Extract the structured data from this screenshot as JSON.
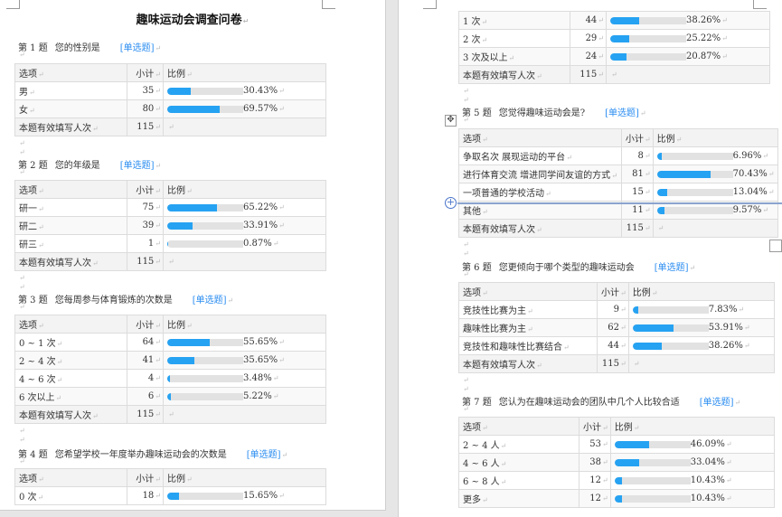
{
  "document": {
    "title": "趣味运动会调查问卷",
    "headers": {
      "option": "选项",
      "count": "小计",
      "ratio": "比例"
    },
    "total_label": "本题有效填写人次",
    "tag": "[单选题]",
    "colors": {
      "bar_fill": "#26a2f2",
      "bar_track": "#e2e2e2",
      "tag": "#2a8cf0"
    }
  },
  "questions": [
    {
      "no": "第 1 题",
      "text": "您的性别是",
      "total": "115",
      "rows": [
        {
          "label": "男",
          "count": "35",
          "pct": "30.43%"
        },
        {
          "label": "女",
          "count": "80",
          "pct": "69.57%"
        }
      ]
    },
    {
      "no": "第 2 题",
      "text": "您的年级是",
      "total": "115",
      "rows": [
        {
          "label": "研一",
          "count": "75",
          "pct": "65.22%"
        },
        {
          "label": "研二",
          "count": "39",
          "pct": "33.91%"
        },
        {
          "label": "研三",
          "count": "1",
          "pct": "0.87%"
        }
      ]
    },
    {
      "no": "第 3 题",
      "text": "您每周参与体育锻炼的次数是",
      "total": "115",
      "rows": [
        {
          "label": "0 ~ 1 次",
          "count": "64",
          "pct": "55.65%"
        },
        {
          "label": "2 ~ 4 次",
          "count": "41",
          "pct": "35.65%"
        },
        {
          "label": "4 ~ 6 次",
          "count": "4",
          "pct": "3.48%"
        },
        {
          "label": "6 次以上",
          "count": "6",
          "pct": "5.22%"
        }
      ]
    },
    {
      "no": "第 4 题",
      "text": "您希望学校一年度举办趣味运动会的次数是",
      "total": "115",
      "rows": [
        {
          "label": "0 次",
          "count": "18",
          "pct": "15.65%"
        },
        {
          "label": "1 次",
          "count": "44",
          "pct": "38.26%"
        },
        {
          "label": "2 次",
          "count": "29",
          "pct": "25.22%"
        },
        {
          "label": "3 次及以上",
          "count": "24",
          "pct": "20.87%"
        }
      ]
    },
    {
      "no": "第 5 题",
      "text": "您觉得趣味运动会是?",
      "total": "115",
      "rows": [
        {
          "label": "争取名次 展现运动的平台",
          "count": "8",
          "pct": "6.96%"
        },
        {
          "label": "进行体育交流 增进同学间友谊的方式",
          "count": "81",
          "pct": "70.43%"
        },
        {
          "label": "一项普通的学校活动",
          "count": "15",
          "pct": "13.04%"
        },
        {
          "label": "其他",
          "count": "11",
          "pct": "9.57%"
        }
      ]
    },
    {
      "no": "第 6 题",
      "text": "您更倾向于哪个类型的趣味运动会",
      "total": "115",
      "rows": [
        {
          "label": "竞技性比赛为主",
          "count": "9",
          "pct": "7.83%"
        },
        {
          "label": "趣味性比赛为主",
          "count": "62",
          "pct": "53.91%"
        },
        {
          "label": "竞技性和趣味性比赛结合",
          "count": "44",
          "pct": "38.26%"
        }
      ]
    },
    {
      "no": "第 7 题",
      "text": "您认为在趣味运动会的团队中几个人比较合适",
      "total": "",
      "rows": [
        {
          "label": "2 ~ 4 人",
          "count": "53",
          "pct": "46.09%"
        },
        {
          "label": "4 ~ 6 人",
          "count": "38",
          "pct": "33.04%"
        },
        {
          "label": "6 ~ 8 人",
          "count": "12",
          "pct": "10.43%"
        },
        {
          "label": "更多",
          "count": "12",
          "pct": "10.43%"
        }
      ]
    }
  ]
}
